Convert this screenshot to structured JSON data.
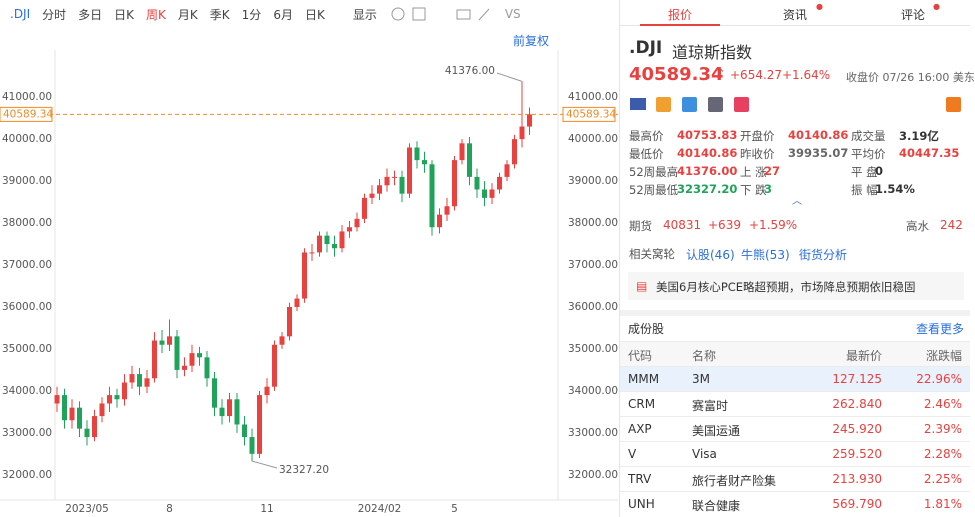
{
  "toolbar": {
    "symbol": ".DJI",
    "items": [
      "分时",
      "多日",
      "日K",
      "周K",
      "月K",
      "季K",
      "1分",
      "6月",
      "日K",
      "显示"
    ],
    "active": 3,
    "compare": "VS"
  },
  "chart_data": {
    "type": "candlestick",
    "adjust": "前复权",
    "up_color": "#e8413f",
    "down_color": "#1fa35a",
    "price_line_color": "#f08a24",
    "grid": false,
    "ylim": [
      31400,
      42100
    ],
    "yticks": [
      {
        "value": 32000,
        "label": "32000.00"
      },
      {
        "value": 33000,
        "label": "33000.00"
      },
      {
        "value": 34000,
        "label": "34000.00"
      },
      {
        "value": 35000,
        "label": "35000.00"
      },
      {
        "value": 36000,
        "label": "36000.00"
      },
      {
        "value": 37000,
        "label": "37000.00"
      },
      {
        "value": 38000,
        "label": "38000.00"
      },
      {
        "value": 39000,
        "label": "39000.00"
      },
      {
        "value": 40000,
        "label": "40000.00"
      },
      {
        "value": 41000,
        "label": "41000.00"
      }
    ],
    "last_price": 40589.34,
    "max_label": {
      "value": 41376,
      "label": "41376.00"
    },
    "min_label": {
      "value": 32327.2,
      "label": "32327.20"
    },
    "categories": [
      null,
      null,
      null,
      null,
      "2023/05",
      null,
      null,
      null,
      null,
      null,
      null,
      null,
      null,
      null,
      null,
      "8",
      null,
      null,
      null,
      null,
      null,
      null,
      null,
      null,
      null,
      null,
      null,
      null,
      "11",
      null,
      null,
      null,
      null,
      null,
      null,
      null,
      null,
      null,
      null,
      null,
      null,
      null,
      null,
      "2024/02",
      null,
      null,
      null,
      null,
      null,
      null,
      null,
      null,
      null,
      "5",
      null,
      null,
      null,
      null,
      null,
      null,
      null,
      null,
      null,
      null
    ],
    "candles": {
      "open": [
        33700,
        33900,
        33300,
        33600,
        33100,
        32900,
        33400,
        33700,
        33900,
        33800,
        34200,
        34400,
        34100,
        34300,
        35200,
        35100,
        35300,
        34500,
        34600,
        34900,
        34800,
        34300,
        33600,
        33400,
        33800,
        33200,
        32900,
        32500,
        33900,
        34100,
        35100,
        35300,
        36000,
        36200,
        37300,
        37300,
        37700,
        37500,
        37400,
        37800,
        37900,
        38100,
        38600,
        38700,
        38900,
        39100,
        39100,
        38700,
        39800,
        39500,
        39400,
        37900,
        38200,
        38400,
        39500,
        39900,
        39100,
        38800,
        38600,
        38800,
        39100,
        39400,
        40000,
        40300
      ],
      "high": [
        34100,
        34050,
        33800,
        33750,
        33300,
        33550,
        33850,
        34100,
        34050,
        34400,
        34600,
        34550,
        34500,
        35400,
        35450,
        35700,
        35450,
        34800,
        35100,
        35050,
        34950,
        34450,
        33800,
        33950,
        33950,
        33400,
        33100,
        34000,
        34300,
        35200,
        35400,
        36100,
        36300,
        37400,
        37500,
        37800,
        37800,
        37700,
        37950,
        38050,
        38250,
        38700,
        38900,
        39050,
        39300,
        39250,
        39250,
        39900,
        39950,
        39700,
        39500,
        38350,
        38600,
        39600,
        40000,
        40050,
        39300,
        39000,
        38950,
        39200,
        39500,
        40100,
        41376,
        40753.83
      ],
      "low": [
        33500,
        33100,
        33100,
        32900,
        32700,
        32800,
        33250,
        33500,
        33600,
        33650,
        34050,
        33900,
        33950,
        34200,
        34900,
        34950,
        34300,
        34350,
        34450,
        34600,
        34100,
        33400,
        33200,
        33250,
        33000,
        32700,
        32327.2,
        32400,
        33700,
        34000,
        35000,
        35200,
        35900,
        36100,
        37100,
        37200,
        37300,
        37200,
        37300,
        37650,
        37800,
        38000,
        38450,
        38550,
        38750,
        38900,
        38500,
        38600,
        39300,
        39200,
        37700,
        37750,
        38050,
        38300,
        39400,
        38900,
        38600,
        38400,
        38450,
        38700,
        39000,
        39300,
        39800,
        40100
      ],
      "close": [
        33900,
        33300,
        33600,
        33100,
        32900,
        33400,
        33700,
        33900,
        33800,
        34200,
        34400,
        34100,
        34300,
        35200,
        35100,
        35300,
        34500,
        34600,
        34900,
        34800,
        34300,
        33600,
        33400,
        33800,
        33200,
        32900,
        32500,
        33900,
        34100,
        35100,
        35300,
        36000,
        36200,
        37300,
        37300,
        37700,
        37500,
        37400,
        37800,
        37900,
        38100,
        38600,
        38700,
        38900,
        39100,
        39100,
        38700,
        39800,
        39500,
        39400,
        37900,
        38200,
        38400,
        39500,
        39900,
        39100,
        38800,
        38600,
        38800,
        39100,
        39400,
        40000,
        40300,
        40589.34
      ]
    }
  },
  "tabs": [
    "报价",
    "资讯",
    "评论"
  ],
  "quote": {
    "symbol": ".DJI",
    "name": "道琼斯指数",
    "price": "40589.34",
    "change": "+654.27",
    "change_pct": "+1.64%",
    "status": "收盘价 07/26 16:00 美东",
    "stats": [
      [
        [
          "最高价",
          "40753.83"
        ],
        [
          "开盘价",
          "40140.86"
        ],
        [
          "成交量",
          "3.19亿"
        ]
      ],
      [
        [
          "最低价",
          "40140.86"
        ],
        [
          "昨收价",
          "39935.07"
        ],
        [
          "平均价",
          "40447.35"
        ]
      ],
      [
        [
          "52周最高",
          "41376.00"
        ],
        [
          "上 涨",
          "27"
        ],
        [
          "平 盘",
          "0"
        ]
      ],
      [
        [
          "52周最低",
          "32327.20"
        ],
        [
          "下 跌",
          "3"
        ],
        [
          "振 幅",
          "1.54%"
        ]
      ]
    ],
    "futures": {
      "label": "期货",
      "price": "40831",
      "change": "+639",
      "change_pct": "+1.59%",
      "premium_label": "高水",
      "premium": "242"
    },
    "warrants": {
      "label": "相关窝轮",
      "links": [
        "认股(46)",
        "牛熊(53)",
        "街货分析"
      ]
    },
    "news": "美国6月核心PCE略超预期，市场降息预期依旧稳固"
  },
  "constituents": {
    "title": "成份股",
    "more": "查看更多",
    "columns": [
      "代码",
      "名称",
      "最新价",
      "涨跌幅"
    ],
    "rows": [
      [
        "MMM",
        "3M",
        "127.125",
        "22.96%"
      ],
      [
        "CRM",
        "赛富时",
        "262.840",
        "2.46%"
      ],
      [
        "AXP",
        "美国运通",
        "245.920",
        "2.39%"
      ],
      [
        "V",
        "Visa",
        "259.520",
        "2.28%"
      ],
      [
        "TRV",
        "旅行者财产险集",
        "213.930",
        "2.25%"
      ],
      [
        "UNH",
        "联合健康",
        "569.790",
        "1.81%"
      ]
    ]
  }
}
